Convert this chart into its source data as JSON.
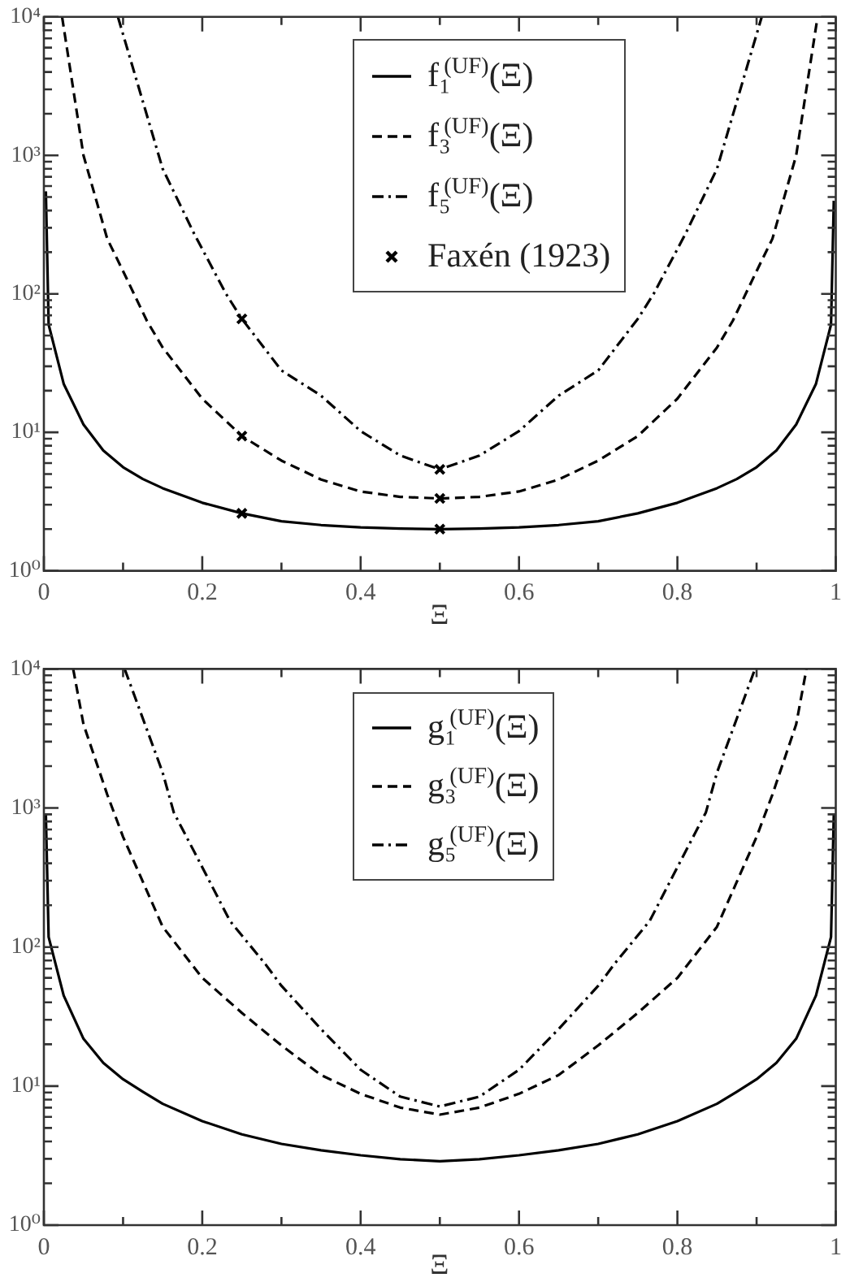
{
  "chart_data": [
    {
      "type": "line",
      "xlabel": "Ξ",
      "xlim": [
        0,
        1
      ],
      "xticks": [
        0,
        {
          "value": 0.1,
          "label": null
        },
        0.2,
        {
          "value": 0.3,
          "label": null
        },
        0.4,
        {
          "value": 0.5,
          "label": null
        },
        0.6,
        {
          "value": 0.7,
          "label": null
        },
        0.8,
        {
          "value": 0.9,
          "label": null
        },
        1
      ],
      "ylim": [
        1,
        10000
      ],
      "yticks": [
        {
          "value": 1,
          "label": "10⁰"
        },
        {
          "value": 2,
          "label": null
        },
        {
          "value": 3,
          "label": null
        },
        {
          "value": 4,
          "label": null
        },
        {
          "value": 5,
          "label": null
        },
        {
          "value": 6,
          "label": null
        },
        {
          "value": 7,
          "label": null
        },
        {
          "value": 8,
          "label": null
        },
        {
          "value": 9,
          "label": null
        },
        {
          "value": 10,
          "label": "10¹"
        },
        {
          "value": 20,
          "label": null
        },
        {
          "value": 30,
          "label": null
        },
        {
          "value": 40,
          "label": null
        },
        {
          "value": 50,
          "label": null
        },
        {
          "value": 60,
          "label": null
        },
        {
          "value": 70,
          "label": null
        },
        {
          "value": 80,
          "label": null
        },
        {
          "value": 90,
          "label": null
        },
        {
          "value": 100,
          "label": "10²"
        },
        {
          "value": 200,
          "label": null
        },
        {
          "value": 300,
          "label": null
        },
        {
          "value": 400,
          "label": null
        },
        {
          "value": 500,
          "label": null
        },
        {
          "value": 600,
          "label": null
        },
        {
          "value": 700,
          "label": null
        },
        {
          "value": 800,
          "label": null
        },
        {
          "value": 900,
          "label": null
        },
        {
          "value": 1000,
          "label": "10³"
        },
        {
          "value": 2000,
          "label": null
        },
        {
          "value": 3000,
          "label": null
        },
        {
          "value": 4000,
          "label": null
        },
        {
          "value": 5000,
          "label": null
        },
        {
          "value": 6000,
          "label": null
        },
        {
          "value": 7000,
          "label": null
        },
        {
          "value": 8000,
          "label": null
        },
        {
          "value": 9000,
          "label": null
        },
        {
          "value": 10000,
          "label": "10⁴"
        }
      ],
      "log": "y",
      "legend": "top",
      "marker": "none",
      "series": [
        {
          "name": "f₁$^{(UF)}$(Ξ)",
          "color": "#000000",
          "line_style": "solid",
          "x": [
            0.0025,
            0.006,
            0.025,
            0.05,
            0.075,
            0.1,
            0.125,
            0.15,
            0.2,
            0.25,
            0.3,
            0.35,
            0.4,
            0.45,
            0.5,
            0.55,
            0.6,
            0.65,
            0.7,
            0.75,
            0.8,
            0.85,
            0.875,
            0.9,
            0.925,
            0.95,
            0.975,
            0.994,
            0.9975
          ],
          "values": [
            550,
            60,
            22.4,
            11.4,
            7.4,
            5.6,
            4.6,
            3.95,
            3.1,
            2.6,
            2.28,
            2.14,
            2.06,
            2.02,
            2.0,
            2.02,
            2.06,
            2.14,
            2.28,
            2.6,
            3.1,
            3.95,
            4.6,
            5.6,
            7.4,
            11.4,
            22.4,
            60,
            470
          ]
        },
        {
          "name": "f₃$^{(UF)}$(Ξ)",
          "color": "#000000",
          "line_style": "dashed",
          "x": [
            0.023,
            0.05,
            0.08,
            0.1,
            0.13,
            0.15,
            0.2,
            0.25,
            0.3,
            0.35,
            0.4,
            0.45,
            0.5,
            0.55,
            0.6,
            0.65,
            0.7,
            0.75,
            0.8,
            0.85,
            0.87,
            0.9,
            0.92,
            0.95,
            0.977
          ],
          "values": [
            10000,
            1000,
            250,
            146,
            64,
            41,
            17.5,
            9.4,
            6.25,
            4.56,
            3.74,
            3.42,
            3.33,
            3.42,
            3.74,
            4.56,
            6.25,
            9.4,
            17.5,
            41,
            64,
            146,
            250,
            1000,
            10000
          ]
        },
        {
          "name": "f₅$^{(UF)}$(Ξ)",
          "color": "#000000",
          "line_style": "dashdot",
          "x": [
            0.0935,
            0.15,
            0.19,
            0.23,
            0.25,
            0.3,
            0.35,
            0.4,
            0.45,
            0.5,
            0.55,
            0.6,
            0.65,
            0.7,
            0.75,
            0.77,
            0.81,
            0.85,
            0.9065
          ],
          "values": [
            10000,
            800,
            270,
            100,
            66,
            28,
            18.4,
            10.2,
            6.8,
            5.4,
            6.8,
            10.2,
            18.4,
            28,
            66,
            100,
            270,
            800,
            10000
          ]
        },
        {
          "name": "Faxén (1923)",
          "type": "scatter",
          "marker": "cross",
          "color": "#000000",
          "x": [
            0.25,
            0.25,
            0.25,
            0.5,
            0.5,
            0.5
          ],
          "values": [
            2.6,
            9.4,
            66,
            2.0,
            3.33,
            5.4
          ]
        }
      ]
    },
    {
      "type": "line",
      "xlabel": "Ξ",
      "xlim": [
        0,
        1
      ],
      "xticks": [
        0,
        {
          "value": 0.1,
          "label": null
        },
        0.2,
        {
          "value": 0.3,
          "label": null
        },
        0.4,
        {
          "value": 0.5,
          "label": null
        },
        0.6,
        {
          "value": 0.7,
          "label": null
        },
        0.8,
        {
          "value": 0.9,
          "label": null
        },
        1
      ],
      "ylim": [
        1,
        10000
      ],
      "yticks": [
        {
          "value": 1,
          "label": "10⁰"
        },
        {
          "value": 2,
          "label": null
        },
        {
          "value": 3,
          "label": null
        },
        {
          "value": 4,
          "label": null
        },
        {
          "value": 5,
          "label": null
        },
        {
          "value": 6,
          "label": null
        },
        {
          "value": 7,
          "label": null
        },
        {
          "value": 8,
          "label": null
        },
        {
          "value": 9,
          "label": null
        },
        {
          "value": 10,
          "label": "10¹"
        },
        {
          "value": 20,
          "label": null
        },
        {
          "value": 30,
          "label": null
        },
        {
          "value": 40,
          "label": null
        },
        {
          "value": 50,
          "label": null
        },
        {
          "value": 60,
          "label": null
        },
        {
          "value": 70,
          "label": null
        },
        {
          "value": 80,
          "label": null
        },
        {
          "value": 90,
          "label": null
        },
        {
          "value": 100,
          "label": "10²"
        },
        {
          "value": 200,
          "label": null
        },
        {
          "value": 300,
          "label": null
        },
        {
          "value": 400,
          "label": null
        },
        {
          "value": 500,
          "label": null
        },
        {
          "value": 600,
          "label": null
        },
        {
          "value": 700,
          "label": null
        },
        {
          "value": 800,
          "label": null
        },
        {
          "value": 900,
          "label": null
        },
        {
          "value": 1000,
          "label": "10³"
        },
        {
          "value": 2000,
          "label": null
        },
        {
          "value": 3000,
          "label": null
        },
        {
          "value": 4000,
          "label": null
        },
        {
          "value": 5000,
          "label": null
        },
        {
          "value": 6000,
          "label": null
        },
        {
          "value": 7000,
          "label": null
        },
        {
          "value": 8000,
          "label": null
        },
        {
          "value": 9000,
          "label": null
        },
        {
          "value": 10000,
          "label": "10⁴"
        }
      ],
      "log": "y",
      "legend": "top",
      "marker": "none",
      "series": [
        {
          "name": "g₁$^{(UF)}$(Ξ)",
          "color": "#000000",
          "line_style": "solid",
          "x": [
            0.0025,
            0.006,
            0.025,
            0.05,
            0.075,
            0.1,
            0.125,
            0.15,
            0.2,
            0.25,
            0.3,
            0.35,
            0.4,
            0.45,
            0.5,
            0.55,
            0.6,
            0.65,
            0.7,
            0.75,
            0.8,
            0.85,
            0.875,
            0.9,
            0.925,
            0.95,
            0.975,
            0.994,
            0.9975
          ],
          "values": [
            900,
            118,
            44.8,
            21.9,
            14.7,
            11.2,
            9.1,
            7.46,
            5.6,
            4.5,
            3.84,
            3.45,
            3.18,
            2.98,
            2.88,
            2.98,
            3.18,
            3.45,
            3.84,
            4.5,
            5.6,
            7.46,
            9.1,
            11.2,
            14.7,
            21.9,
            44.8,
            118,
            900
          ]
        },
        {
          "name": "g₃$^{(UF)}$(Ξ)",
          "color": "#000000",
          "line_style": "dashed",
          "x": [
            0.037,
            0.05,
            0.08,
            0.1,
            0.15,
            0.2,
            0.25,
            0.3,
            0.35,
            0.4,
            0.45,
            0.5,
            0.55,
            0.6,
            0.65,
            0.7,
            0.75,
            0.8,
            0.85,
            0.9,
            0.92,
            0.95,
            0.963
          ],
          "values": [
            10000,
            4000,
            1250,
            620,
            140,
            60,
            33.6,
            19.6,
            12.0,
            8.8,
            7.0,
            6.23,
            7.0,
            8.8,
            12.0,
            19.6,
            33.6,
            60,
            140,
            620,
            1250,
            4000,
            10000
          ]
        },
        {
          "name": "g₅$^{(UF)}$(Ξ)",
          "color": "#000000",
          "line_style": "dashdot",
          "x": [
            0.102,
            0.15,
            0.164,
            0.2,
            0.235,
            0.28,
            0.3,
            0.35,
            0.4,
            0.45,
            0.5,
            0.55,
            0.6,
            0.65,
            0.7,
            0.72,
            0.765,
            0.8,
            0.836,
            0.85,
            0.898
          ],
          "values": [
            10000,
            1800,
            930,
            375,
            154,
            75,
            52.6,
            25.7,
            13.1,
            8.4,
            7.13,
            8.4,
            13.1,
            25.7,
            52.6,
            75,
            154,
            375,
            930,
            1800,
            10000
          ]
        }
      ]
    }
  ]
}
